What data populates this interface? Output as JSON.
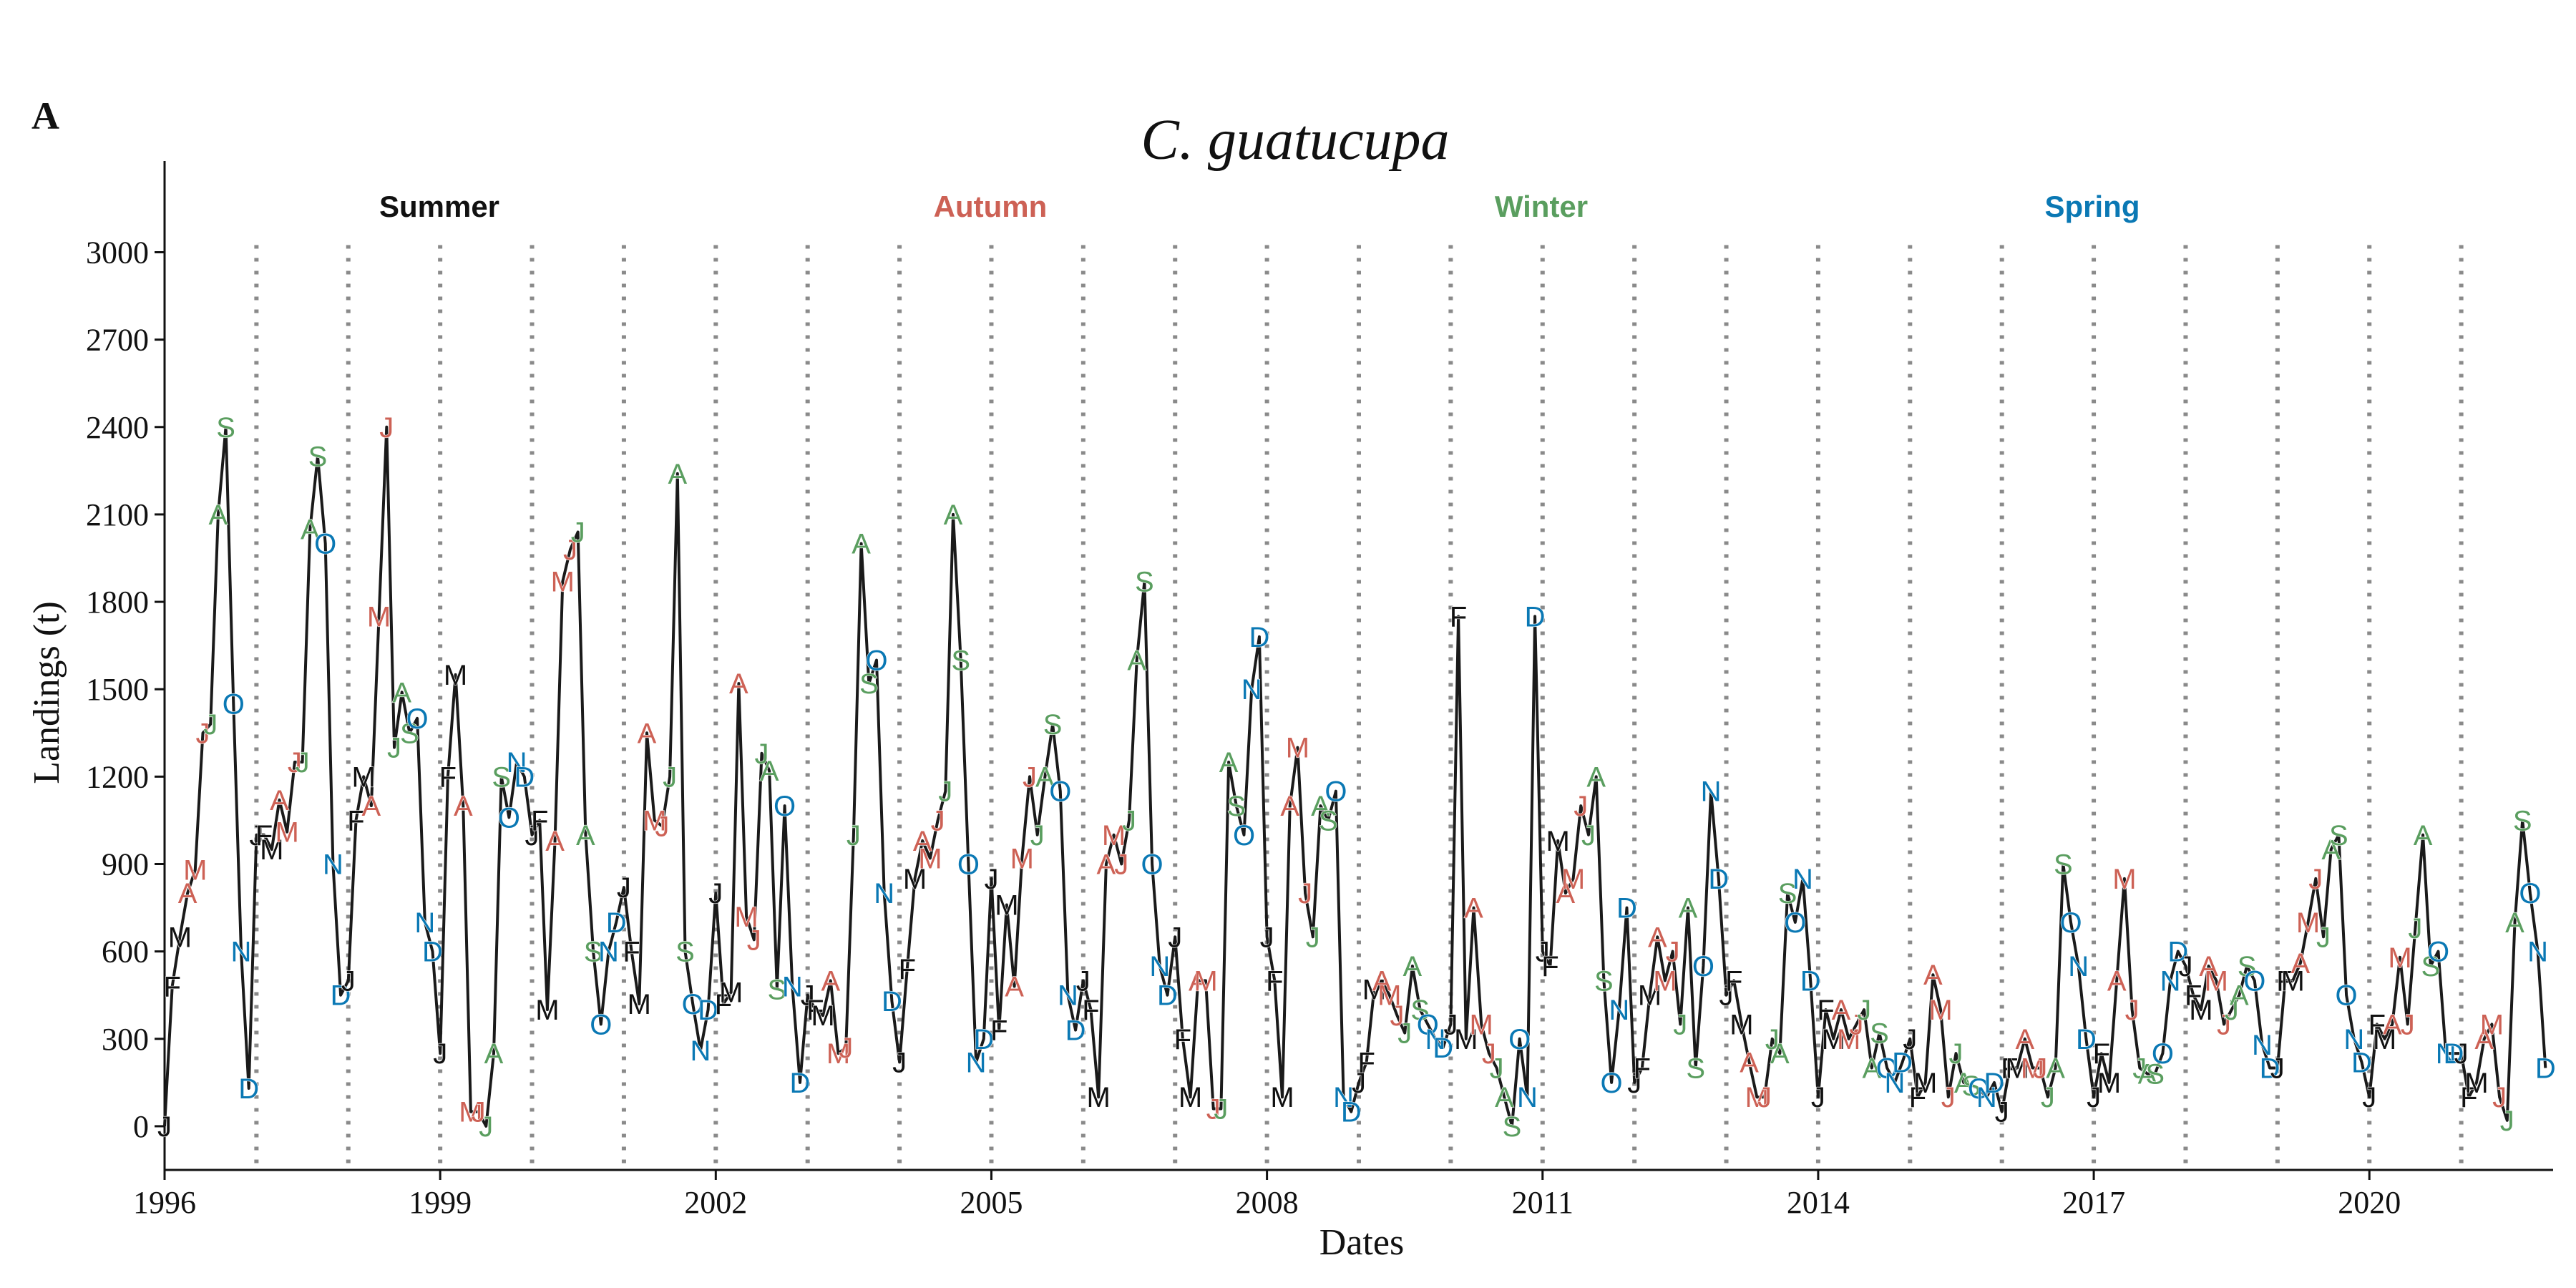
{
  "panel_label": "A",
  "chart_data": {
    "type": "line",
    "title": "C. guatucupa",
    "xlabel": "Dates",
    "ylabel": "Landings (t)",
    "xlim": [
      1996,
      2022.0
    ],
    "ylim": [
      -150,
      3350
    ],
    "x_ticks": [
      1996,
      1999,
      2002,
      2005,
      2008,
      2011,
      2014,
      2017,
      2020
    ],
    "y_ticks": [
      0,
      300,
      600,
      900,
      1200,
      1500,
      1800,
      2100,
      2400,
      2700,
      3000
    ],
    "vertical_reference_lines": [
      1997,
      1998,
      1999,
      2000,
      2001,
      2002,
      2003,
      2004,
      2005,
      2006,
      2007,
      2008,
      2009,
      2010,
      2011,
      2012,
      2013,
      2014,
      2015,
      2016,
      2017,
      2018,
      2019,
      2020,
      2021
    ],
    "grid": false,
    "legend_position": "top",
    "seasons": [
      {
        "name": "Summer",
        "months": [
          "J",
          "F",
          "M"
        ],
        "color": "#111111"
      },
      {
        "name": "Autumn",
        "months": [
          "A",
          "M",
          "J"
        ],
        "color": "#cd6155"
      },
      {
        "name": "Winter",
        "months": [
          "J",
          "A",
          "S"
        ],
        "color": "#5a9e5f"
      },
      {
        "name": "Spring",
        "months": [
          "O",
          "N",
          "D"
        ],
        "color": "#0a78b4"
      }
    ],
    "month_letters": [
      "J",
      "F",
      "M",
      "A",
      "M",
      "J",
      "J",
      "A",
      "S",
      "O",
      "N",
      "D"
    ],
    "month_seasons": [
      0,
      0,
      0,
      1,
      1,
      1,
      2,
      2,
      2,
      3,
      3,
      3
    ],
    "start_year": 1996,
    "start_month": 1,
    "values": [
      0,
      480,
      650,
      800,
      880,
      1350,
      1380,
      2100,
      2400,
      1450,
      600,
      130,
      1000,
      1000,
      950,
      1120,
      1010,
      1250,
      1250,
      2050,
      2300,
      2000,
      900,
      450,
      500,
      1050,
      1200,
      1100,
      1750,
      2400,
      1300,
      1490,
      1350,
      1400,
      700,
      600,
      250,
      1200,
      1550,
      1100,
      50,
      50,
      0,
      250,
      1200,
      1060,
      1250,
      1200,
      1000,
      1050,
      400,
      980,
      1870,
      1980,
      2040,
      1000,
      600,
      350,
      600,
      700,
      820,
      600,
      420,
      1350,
      1050,
      1030,
      1200,
      2240,
      600,
      420,
      260,
      400,
      800,
      420,
      460,
      1520,
      720,
      640,
      1280,
      1220,
      470,
      1100,
      480,
      150,
      450,
      400,
      380,
      500,
      250,
      270,
      1000,
      2000,
      1520,
      1600,
      800,
      430,
      220,
      540,
      850,
      980,
      920,
      1050,
      1150,
      2100,
      1600,
      900,
      220,
      300,
      850,
      330,
      760,
      480,
      920,
      1200,
      1000,
      1200,
      1380,
      1150,
      450,
      330,
      500,
      400,
      100,
      900,
      1000,
      900,
      1050,
      1600,
      1870,
      900,
      550,
      450,
      650,
      300,
      100,
      500,
      500,
      60,
      60,
      1250,
      1100,
      1000,
      1500,
      1680,
      650,
      500,
      100,
      1100,
      1300,
      800,
      650,
      1100,
      1050,
      1150,
      100,
      50,
      150,
      220,
      470,
      500,
      450,
      380,
      320,
      550,
      400,
      350,
      300,
      270,
      350,
      1750,
      300,
      750,
      350,
      250,
      200,
      100,
      0,
      300,
      100,
      1750,
      600,
      550,
      980,
      800,
      850,
      1100,
      1000,
      1200,
      500,
      150,
      400,
      750,
      150,
      200,
      450,
      650,
      500,
      600,
      350,
      750,
      200,
      550,
      1150,
      850,
      450,
      500,
      350,
      220,
      100,
      100,
      300,
      250,
      800,
      700,
      850,
      500,
      100,
      400,
      300,
      400,
      300,
      350,
      400,
      200,
      320,
      200,
      150,
      220,
      300,
      100,
      150,
      520,
      400,
      100,
      250,
      150,
      140,
      130,
      100,
      150,
      50,
      200,
      200,
      300,
      200,
      200,
      100,
      200,
      900,
      700,
      550,
      300,
      100,
      250,
      150,
      500,
      850,
      400,
      200,
      180,
      180,
      250,
      500,
      600,
      550,
      450,
      400,
      550,
      500,
      350,
      400,
      450,
      550,
      500,
      280,
      200,
      200,
      500,
      500,
      560,
      700,
      850,
      650,
      950,
      1000,
      450,
      300,
      220,
      100,
      350,
      300,
      350,
      580,
      350,
      680,
      1000,
      550,
      600,
      250,
      250,
      250,
      100,
      150,
      300,
      350,
      100,
      20,
      700,
      1050,
      800,
      600,
      200
    ]
  }
}
